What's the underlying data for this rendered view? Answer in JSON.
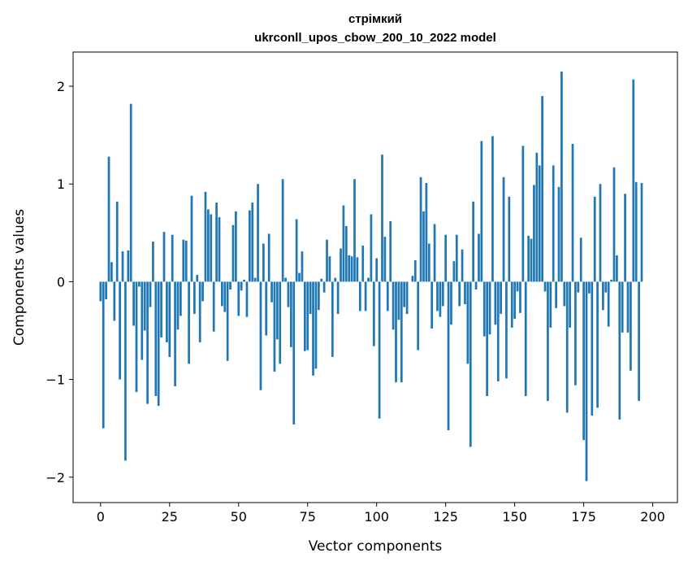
{
  "chart_data": {
    "type": "bar",
    "title": "стрімкий",
    "subtitle": "ukrconll_upos_cbow_200_10_2022 model",
    "xlabel": "Vector components",
    "ylabel": "Components values",
    "xlim": [
      -9.95,
      208.95
    ],
    "ylim": [
      -2.26,
      2.35
    ],
    "xticks": [
      0,
      25,
      50,
      75,
      100,
      125,
      150,
      175,
      200
    ],
    "yticks": [
      -2,
      -1,
      0,
      1,
      2
    ],
    "xtick_labels": [
      "0",
      "25",
      "50",
      "75",
      "100",
      "125",
      "150",
      "175",
      "200"
    ],
    "ytick_labels": [
      "−2",
      "−1",
      "0",
      "1",
      "2"
    ],
    "bar_color": "#1f77b4",
    "grid": false,
    "values": [
      -0.2,
      -1.5,
      -0.18,
      1.28,
      0.2,
      -0.4,
      0.82,
      -1.0,
      0.31,
      -1.83,
      0.32,
      1.82,
      -0.45,
      -1.13,
      -0.05,
      -0.8,
      -0.5,
      -1.25,
      -0.26,
      0.41,
      -1.17,
      -1.27,
      -0.57,
      0.51,
      -0.62,
      -0.77,
      0.48,
      -1.07,
      -0.49,
      -0.35,
      0.43,
      0.42,
      -0.84,
      0.88,
      -0.33,
      0.07,
      -0.62,
      -0.2,
      0.92,
      0.74,
      0.69,
      -0.51,
      0.81,
      0.66,
      -0.25,
      -0.31,
      -0.81,
      -0.08,
      0.58,
      0.72,
      -0.35,
      -0.09,
      0.02,
      -0.36,
      0.73,
      0.81,
      0.04,
      1.0,
      -1.11,
      0.39,
      -0.55,
      0.49,
      -0.21,
      -0.92,
      -0.59,
      -0.84,
      1.05,
      0.04,
      -0.26,
      -0.67,
      -1.46,
      0.64,
      0.09,
      0.31,
      -0.71,
      -0.7,
      -0.33,
      -0.96,
      -0.89,
      -0.29,
      0.03,
      -0.11,
      0.43,
      0.26,
      -0.77,
      0.04,
      -0.33,
      0.34,
      0.78,
      0.57,
      0.27,
      0.26,
      1.05,
      0.25,
      -0.3,
      0.37,
      -0.3,
      0.04,
      0.69,
      -0.66,
      0.24,
      -1.4,
      1.3,
      0.46,
      -0.3,
      0.62,
      -0.49,
      -1.03,
      -0.39,
      -1.03,
      -0.26,
      -0.33,
      0.0,
      0.06,
      0.22,
      -0.7,
      1.07,
      0.72,
      1.01,
      0.39,
      -0.48,
      0.59,
      -0.3,
      -0.36,
      -0.25,
      0.48,
      -1.52,
      -0.44,
      0.21,
      0.48,
      -0.25,
      0.33,
      -0.23,
      -0.84,
      -1.69,
      0.82,
      -0.08,
      0.49,
      1.44,
      -0.56,
      -1.17,
      -0.54,
      1.49,
      -0.44,
      -1.02,
      -0.33,
      1.07,
      -0.99,
      0.87,
      -0.47,
      -0.38,
      -0.1,
      -0.32,
      1.39,
      -1.17,
      0.47,
      0.44,
      0.99,
      1.32,
      1.19,
      1.9,
      -0.1,
      -1.22,
      -0.47,
      1.19,
      -0.27,
      0.97,
      2.15,
      -0.25,
      -1.34,
      -0.47,
      1.41,
      -1.06,
      -0.11,
      0.45,
      -1.62,
      -2.04,
      -0.12,
      -1.37,
      0.87,
      -1.29,
      1.0,
      -0.29,
      -0.11,
      -0.46,
      0.02,
      1.17,
      0.27,
      -1.41,
      -0.52,
      0.9,
      -0.52,
      -0.91,
      2.07,
      1.02,
      -1.22,
      1.01
    ]
  }
}
